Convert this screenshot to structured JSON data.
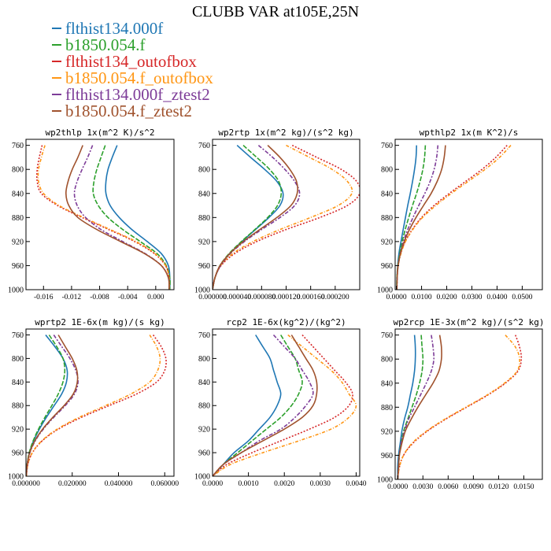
{
  "title": "CLUBB VAR at105E,25N",
  "legend": [
    {
      "label": "flthist134.000f",
      "color": "#1f77b4"
    },
    {
      "label": "b1850.054.f",
      "color": "#2ca02c"
    },
    {
      "label": "flthist134_outofbox",
      "color": "#d62728"
    },
    {
      "label": "b1850.054.f_outofbox",
      "color": "#ff9614"
    },
    {
      "label": "flthist134.000f_ztest2",
      "color": "#7d3c98"
    },
    {
      "label": "b1850.054.f_ztest2",
      "color": "#a0522d"
    }
  ],
  "chart_data": [
    {
      "type": "line",
      "title": "wp2thlp  1x(m^2 K)/s^2",
      "y": [
        760,
        780,
        800,
        820,
        840,
        860,
        880,
        900,
        920,
        940,
        960,
        980,
        1000
      ],
      "ylim": [
        1000,
        750
      ],
      "yticks": [
        760,
        800,
        840,
        880,
        920,
        960,
        1000
      ],
      "xlim": [
        -0.0185,
        0.0026
      ],
      "xticks": [
        -0.016,
        -0.012,
        -0.008,
        -0.004,
        0.0
      ],
      "xticklabels": [
        "-0.016",
        "-0.012",
        "-0.008",
        "-0.004",
        "0.000"
      ],
      "series": [
        {
          "values": [
            -0.0055,
            -0.0062,
            -0.0068,
            -0.0071,
            -0.0071,
            -0.0065,
            -0.0052,
            -0.0034,
            -0.0012,
            0.0008,
            0.0018,
            0.002,
            0.002
          ]
        },
        {
          "values": [
            -0.0072,
            -0.0078,
            -0.0084,
            -0.0088,
            -0.0089,
            -0.0082,
            -0.0068,
            -0.0047,
            -0.0022,
            0.0002,
            0.0015,
            0.002,
            0.002
          ]
        },
        {
          "values": [
            -0.0162,
            -0.0166,
            -0.0169,
            -0.0169,
            -0.0163,
            -0.014,
            -0.0105,
            -0.0067,
            -0.003,
            -0.0002,
            0.0014,
            0.0019,
            0.0019
          ]
        },
        {
          "values": [
            -0.0158,
            -0.0163,
            -0.0167,
            -0.0167,
            -0.016,
            -0.0138,
            -0.0103,
            -0.0065,
            -0.0028,
            -0.0001,
            0.0014,
            0.0019,
            0.0019
          ]
        },
        {
          "values": [
            -0.009,
            -0.0097,
            -0.0105,
            -0.0112,
            -0.0116,
            -0.0112,
            -0.01,
            -0.0078,
            -0.0047,
            -0.0015,
            0.0008,
            0.0018,
            0.0019
          ]
        },
        {
          "values": [
            -0.0104,
            -0.0111,
            -0.0119,
            -0.0125,
            -0.0128,
            -0.0124,
            -0.0111,
            -0.0084,
            -0.005,
            -0.0016,
            0.0008,
            0.0018,
            0.0019
          ]
        }
      ]
    },
    {
      "type": "line",
      "title": "wp2rtp  1x(m^2 kg)/(s^2 kg)",
      "y": [
        760,
        780,
        800,
        820,
        840,
        860,
        880,
        900,
        920,
        940,
        960,
        980,
        1000
      ],
      "ylim": [
        1000,
        750
      ],
      "yticks": [
        760,
        800,
        840,
        880,
        920,
        960,
        1000
      ],
      "xlim": [
        0,
        0.00024
      ],
      "xticks": [
        0,
        4e-05,
        8e-05,
        0.00012,
        0.00016,
        0.0002
      ],
      "xticklabels": [
        "0.000000",
        "0.000040",
        "0.000080",
        "0.000120",
        "0.000160",
        "0.000200"
      ],
      "series": [
        {
          "values": [
            4e-05,
            6.2e-05,
            8.5e-05,
            0.000105,
            0.000115,
            0.00011,
            9.2e-05,
            7e-05,
            4.8e-05,
            2.8e-05,
            1.3e-05,
            4e-06,
            0.0
          ]
        },
        {
          "values": [
            5e-05,
            7.2e-05,
            9.3e-05,
            0.000108,
            0.000112,
            0.000106,
            9e-05,
            6.9e-05,
            4.7e-05,
            2.7e-05,
            1.2e-05,
            4e-06,
            0.0
          ]
        },
        {
          "values": [
            0.00013,
            0.00017,
            0.00021,
            0.000235,
            0.00024,
            0.00022,
            0.000175,
            0.00012,
            7.2e-05,
            3.6e-05,
            1.4e-05,
            4e-06,
            0.0
          ]
        },
        {
          "values": [
            0.00012,
            0.000158,
            0.000195,
            0.00022,
            0.000227,
            0.000205,
            0.00016,
            0.00011,
            6.6e-05,
            3.3e-05,
            1.3e-05,
            4e-06,
            0.0
          ]
        },
        {
          "values": [
            7.5e-05,
            9.8e-05,
            0.000118,
            0.000134,
            0.000142,
            0.000134,
            0.00011,
            8e-05,
            5.2e-05,
            2.9e-05,
            1.3e-05,
            4e-06,
            0.0
          ]
        },
        {
          "values": [
            9e-05,
            0.00011,
            0.000126,
            0.000137,
            0.000138,
            0.000128,
            0.000105,
            7.7e-05,
            5e-05,
            2.8e-05,
            1.2e-05,
            4e-06,
            0.0
          ]
        }
      ]
    },
    {
      "type": "line",
      "title": "wpthlp2  1x(m K^2)/s",
      "y": [
        760,
        780,
        800,
        820,
        840,
        860,
        880,
        900,
        920,
        940,
        960,
        980,
        1000
      ],
      "ylim": [
        1000,
        750
      ],
      "yticks": [
        760,
        800,
        840,
        880,
        920,
        960,
        1000
      ],
      "xlim": [
        -0.0005,
        0.058
      ],
      "xticks": [
        0,
        0.01,
        0.02,
        0.03,
        0.04,
        0.05
      ],
      "xticklabels": [
        "0.0000",
        "0.0100",
        "0.0200",
        "0.0300",
        "0.0400",
        "0.0500"
      ],
      "series": [
        {
          "values": [
            0.008,
            0.0078,
            0.0072,
            0.0064,
            0.0055,
            0.0045,
            0.0036,
            0.0027,
            0.0018,
            0.001,
            0.0005,
            0.0002,
            0.0001
          ]
        },
        {
          "values": [
            0.0115,
            0.0112,
            0.0105,
            0.0094,
            0.008,
            0.0064,
            0.0049,
            0.0035,
            0.0023,
            0.0013,
            0.0006,
            0.0002,
            0.0001
          ]
        },
        {
          "values": [
            0.044,
            0.0395,
            0.034,
            0.0275,
            0.021,
            0.015,
            0.01,
            0.0063,
            0.0035,
            0.0017,
            0.0007,
            0.0003,
            0.0002
          ]
        },
        {
          "values": [
            0.0455,
            0.041,
            0.0352,
            0.0285,
            0.0218,
            0.0157,
            0.0104,
            0.0065,
            0.0036,
            0.0018,
            0.0007,
            0.0003,
            0.0002
          ]
        },
        {
          "values": [
            0.0165,
            0.016,
            0.015,
            0.0134,
            0.0113,
            0.0089,
            0.0066,
            0.0045,
            0.0028,
            0.0015,
            0.0007,
            0.0003,
            0.0002
          ]
        },
        {
          "values": [
            0.0195,
            0.019,
            0.018,
            0.0162,
            0.0138,
            0.0108,
            0.0078,
            0.0052,
            0.0031,
            0.0016,
            0.0007,
            0.0003,
            0.0002
          ]
        }
      ]
    },
    {
      "type": "line",
      "title": "wprtp2  1E-6x(m kg)/(s kg)",
      "y": [
        760,
        780,
        800,
        820,
        840,
        860,
        880,
        900,
        920,
        940,
        960,
        980,
        1000
      ],
      "ylim": [
        1000,
        750
      ],
      "yticks": [
        760,
        800,
        840,
        880,
        920,
        960,
        1000
      ],
      "xlim": [
        0,
        0.064
      ],
      "xticks": [
        0,
        0.02,
        0.04,
        0.06
      ],
      "xticklabels": [
        "0.000000",
        "0.020000",
        "0.040000",
        "0.060000"
      ],
      "series": [
        {
          "values": [
            0.0085,
            0.0125,
            0.016,
            0.0178,
            0.0175,
            0.0155,
            0.0122,
            0.0088,
            0.0058,
            0.0033,
            0.0015,
            0.0005,
            0.0001
          ]
        },
        {
          "values": [
            0.01,
            0.0133,
            0.016,
            0.0168,
            0.016,
            0.014,
            0.0112,
            0.0082,
            0.0054,
            0.0031,
            0.0014,
            0.0005,
            0.0001
          ]
        },
        {
          "values": [
            0.055,
            0.0585,
            0.0605,
            0.06,
            0.0565,
            0.048,
            0.036,
            0.024,
            0.014,
            0.007,
            0.0028,
            0.0008,
            0.0002
          ]
        },
        {
          "values": [
            0.0535,
            0.0565,
            0.058,
            0.057,
            0.0535,
            0.0455,
            0.0345,
            0.023,
            0.0135,
            0.0068,
            0.0027,
            0.0008,
            0.0002
          ]
        },
        {
          "values": [
            0.012,
            0.0155,
            0.019,
            0.0215,
            0.0225,
            0.021,
            0.017,
            0.012,
            0.0075,
            0.004,
            0.0017,
            0.0006,
            0.0001
          ]
        },
        {
          "values": [
            0.014,
            0.017,
            0.02,
            0.022,
            0.0222,
            0.0205,
            0.0165,
            0.0116,
            0.0072,
            0.0038,
            0.0016,
            0.0005,
            0.0001
          ]
        }
      ]
    },
    {
      "type": "line",
      "title": "rcp2  1E-6x(kg^2)/(kg^2)",
      "y": [
        760,
        780,
        800,
        820,
        840,
        860,
        880,
        900,
        920,
        940,
        960,
        980,
        1000
      ],
      "ylim": [
        1000,
        750
      ],
      "yticks": [
        760,
        800,
        840,
        880,
        920,
        960,
        1000
      ],
      "xlim": [
        0,
        0.0041
      ],
      "xticks": [
        0,
        0.001,
        0.002,
        0.003,
        0.004
      ],
      "xticklabels": [
        "0.0000",
        "0.0010",
        "0.0020",
        "0.0030",
        "0.0040"
      ],
      "series": [
        {
          "values": [
            0.0012,
            0.0014,
            0.0016,
            0.0017,
            0.0018,
            0.0019,
            0.0018,
            0.0016,
            0.0013,
            0.001,
            0.0006,
            0.0003,
            0.0
          ]
        },
        {
          "values": [
            0.0019,
            0.0021,
            0.0023,
            0.0024,
            0.0025,
            0.0024,
            0.0022,
            0.0019,
            0.0015,
            0.0011,
            0.0007,
            0.0003,
            0.0
          ]
        },
        {
          "values": [
            0.0025,
            0.0028,
            0.0031,
            0.0034,
            0.0037,
            0.0039,
            0.0038,
            0.0034,
            0.0027,
            0.0019,
            0.0011,
            0.0004,
            0.0
          ]
        },
        {
          "values": [
            0.0021,
            0.0025,
            0.0029,
            0.0033,
            0.0036,
            0.0038,
            0.004,
            0.0038,
            0.0033,
            0.0024,
            0.0014,
            0.0005,
            0.0
          ]
        },
        {
          "values": [
            0.0017,
            0.002,
            0.0023,
            0.0025,
            0.0027,
            0.0028,
            0.0026,
            0.0023,
            0.0019,
            0.0013,
            0.0008,
            0.0003,
            0.0
          ]
        },
        {
          "values": [
            0.0022,
            0.0024,
            0.0026,
            0.0028,
            0.0029,
            0.0029,
            0.0028,
            0.0025,
            0.002,
            0.0014,
            0.0008,
            0.0003,
            0.0
          ]
        }
      ]
    },
    {
      "type": "line",
      "title": "wp2rcp  1E-3x(m^2 kg)/(s^2 kg)",
      "y": [
        760,
        780,
        800,
        820,
        840,
        860,
        880,
        900,
        920,
        940,
        960,
        980,
        1000
      ],
      "ylim": [
        1000,
        750
      ],
      "yticks": [
        760,
        800,
        840,
        880,
        920,
        960,
        1000
      ],
      "xlim": [
        -0.0003,
        0.0172
      ],
      "xticks": [
        0,
        0.003,
        0.006,
        0.009,
        0.012,
        0.015
      ],
      "xticklabels": [
        "0.0000",
        "0.0030",
        "0.0060",
        "0.0090",
        "0.0120",
        "0.0150"
      ],
      "series": [
        {
          "values": [
            0.002,
            0.0021,
            0.0021,
            0.002,
            0.0018,
            0.0015,
            0.0012,
            0.0008,
            0.0005,
            0.0003,
            0.0001,
            0.0,
            0.0
          ]
        },
        {
          "values": [
            0.0028,
            0.0029,
            0.003,
            0.0029,
            0.0026,
            0.0022,
            0.0017,
            0.0012,
            0.0007,
            0.0004,
            0.0002,
            0.0001,
            0.0
          ]
        },
        {
          "values": [
            0.014,
            0.0145,
            0.0147,
            0.0143,
            0.0128,
            0.0107,
            0.0082,
            0.0057,
            0.0035,
            0.0018,
            0.0007,
            0.0002,
            0.0
          ]
        },
        {
          "values": [
            0.0128,
            0.014,
            0.0145,
            0.0142,
            0.0127,
            0.0106,
            0.0081,
            0.0056,
            0.0034,
            0.0017,
            0.0007,
            0.0002,
            0.0
          ]
        },
        {
          "values": [
            0.004,
            0.0042,
            0.0043,
            0.004,
            0.0034,
            0.0027,
            0.002,
            0.0013,
            0.0008,
            0.0004,
            0.0002,
            0.0001,
            0.0
          ]
        },
        {
          "values": [
            0.005,
            0.0052,
            0.0052,
            0.0049,
            0.0042,
            0.0033,
            0.0024,
            0.0016,
            0.0009,
            0.0005,
            0.0002,
            0.0001,
            0.0
          ]
        }
      ]
    }
  ]
}
